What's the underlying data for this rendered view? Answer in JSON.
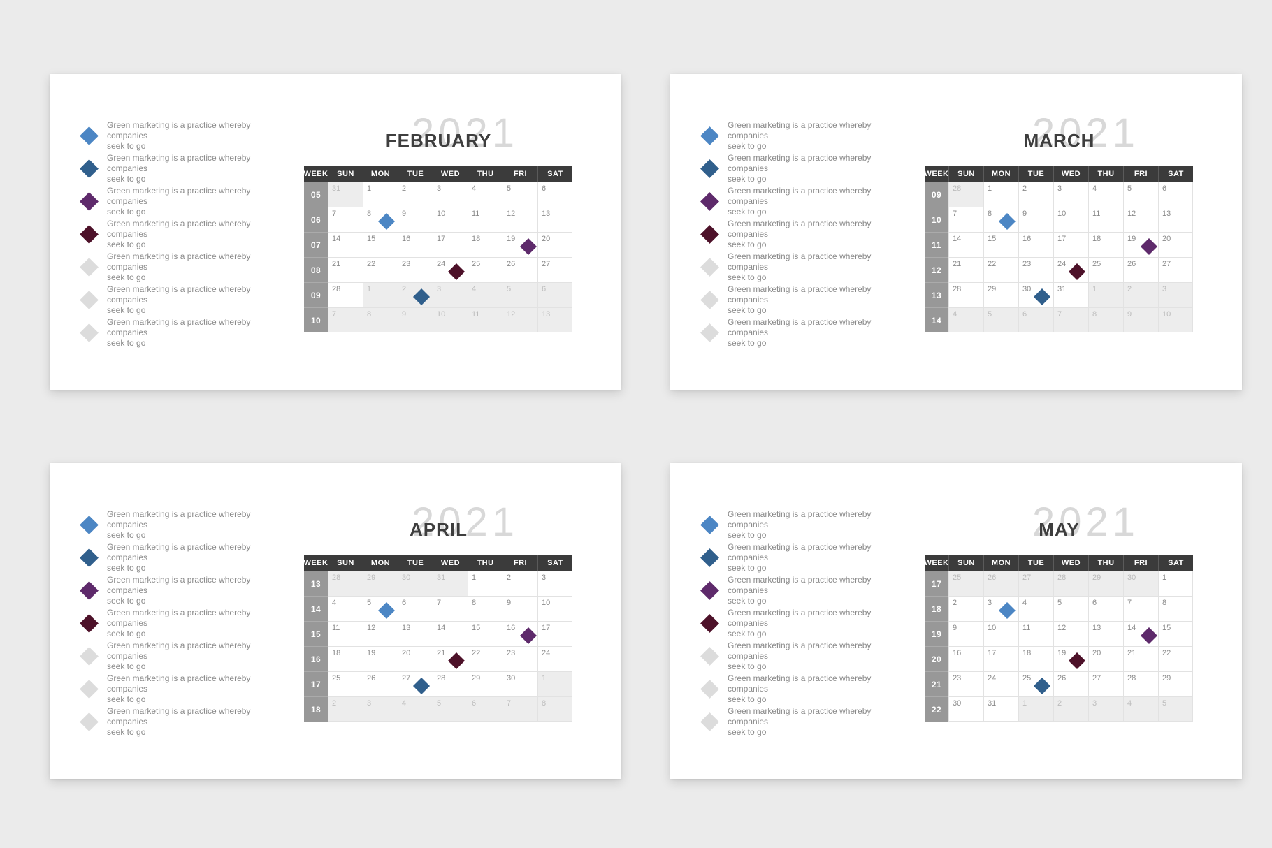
{
  "colors": {
    "blue": "#4c86c4",
    "darkblue": "#305f8c",
    "purple": "#5e2a6b",
    "maroon": "#4d1129",
    "gray": "#dcdcdc"
  },
  "legend": {
    "markers": [
      "blue",
      "darkblue",
      "purple",
      "maroon",
      "gray",
      "gray",
      "gray"
    ],
    "text_lines": [
      "Green marketing is a practice whereby companies",
      "seek to go"
    ]
  },
  "weekday_headers": [
    "WEEK",
    "SUN",
    "MON",
    "TUE",
    "WED",
    "THU",
    "FRI",
    "SAT"
  ],
  "calendars": [
    {
      "month": "FEBRUARY",
      "year": "2021",
      "weeks": [
        {
          "num": "05",
          "days": [
            {
              "d": "31",
              "muted": true
            },
            {
              "d": "1"
            },
            {
              "d": "2"
            },
            {
              "d": "3"
            },
            {
              "d": "4"
            },
            {
              "d": "5"
            },
            {
              "d": "6"
            }
          ]
        },
        {
          "num": "06",
          "days": [
            {
              "d": "7"
            },
            {
              "d": "8",
              "marker": "blue"
            },
            {
              "d": "9"
            },
            {
              "d": "10"
            },
            {
              "d": "11"
            },
            {
              "d": "12"
            },
            {
              "d": "13"
            }
          ]
        },
        {
          "num": "07",
          "days": [
            {
              "d": "14"
            },
            {
              "d": "15"
            },
            {
              "d": "16"
            },
            {
              "d": "17"
            },
            {
              "d": "18"
            },
            {
              "d": "19",
              "marker": "purple"
            },
            {
              "d": "20"
            }
          ]
        },
        {
          "num": "08",
          "days": [
            {
              "d": "21"
            },
            {
              "d": "22"
            },
            {
              "d": "23"
            },
            {
              "d": "24",
              "marker": "maroon"
            },
            {
              "d": "25"
            },
            {
              "d": "26"
            },
            {
              "d": "27"
            }
          ]
        },
        {
          "num": "09",
          "days": [
            {
              "d": "28"
            },
            {
              "d": "1",
              "muted": true
            },
            {
              "d": "2",
              "muted": true,
              "marker": "darkblue"
            },
            {
              "d": "3",
              "muted": true
            },
            {
              "d": "4",
              "muted": true
            },
            {
              "d": "5",
              "muted": true
            },
            {
              "d": "6",
              "muted": true
            }
          ]
        },
        {
          "num": "10",
          "days": [
            {
              "d": "7",
              "muted": true
            },
            {
              "d": "8",
              "muted": true
            },
            {
              "d": "9",
              "muted": true
            },
            {
              "d": "10",
              "muted": true
            },
            {
              "d": "11",
              "muted": true
            },
            {
              "d": "12",
              "muted": true
            },
            {
              "d": "13",
              "muted": true
            }
          ]
        }
      ]
    },
    {
      "month": "MARCH",
      "year": "2021",
      "weeks": [
        {
          "num": "09",
          "days": [
            {
              "d": "28",
              "muted": true
            },
            {
              "d": "1"
            },
            {
              "d": "2"
            },
            {
              "d": "3"
            },
            {
              "d": "4"
            },
            {
              "d": "5"
            },
            {
              "d": "6"
            }
          ]
        },
        {
          "num": "10",
          "days": [
            {
              "d": "7"
            },
            {
              "d": "8",
              "marker": "blue"
            },
            {
              "d": "9"
            },
            {
              "d": "10"
            },
            {
              "d": "11"
            },
            {
              "d": "12"
            },
            {
              "d": "13"
            }
          ]
        },
        {
          "num": "11",
          "days": [
            {
              "d": "14"
            },
            {
              "d": "15"
            },
            {
              "d": "16"
            },
            {
              "d": "17"
            },
            {
              "d": "18"
            },
            {
              "d": "19",
              "marker": "purple"
            },
            {
              "d": "20"
            }
          ]
        },
        {
          "num": "12",
          "days": [
            {
              "d": "21"
            },
            {
              "d": "22"
            },
            {
              "d": "23"
            },
            {
              "d": "24",
              "marker": "maroon"
            },
            {
              "d": "25"
            },
            {
              "d": "26"
            },
            {
              "d": "27"
            }
          ]
        },
        {
          "num": "13",
          "days": [
            {
              "d": "28"
            },
            {
              "d": "29"
            },
            {
              "d": "30",
              "marker": "darkblue"
            },
            {
              "d": "31"
            },
            {
              "d": "1",
              "muted": true
            },
            {
              "d": "2",
              "muted": true
            },
            {
              "d": "3",
              "muted": true
            }
          ]
        },
        {
          "num": "14",
          "days": [
            {
              "d": "4",
              "muted": true
            },
            {
              "d": "5",
              "muted": true
            },
            {
              "d": "6",
              "muted": true
            },
            {
              "d": "7",
              "muted": true
            },
            {
              "d": "8",
              "muted": true
            },
            {
              "d": "9",
              "muted": true
            },
            {
              "d": "10",
              "muted": true
            }
          ]
        }
      ]
    },
    {
      "month": "APRIL",
      "year": "2021",
      "weeks": [
        {
          "num": "13",
          "days": [
            {
              "d": "28",
              "muted": true
            },
            {
              "d": "29",
              "muted": true
            },
            {
              "d": "30",
              "muted": true
            },
            {
              "d": "31",
              "muted": true
            },
            {
              "d": "1"
            },
            {
              "d": "2"
            },
            {
              "d": "3"
            }
          ]
        },
        {
          "num": "14",
          "days": [
            {
              "d": "4"
            },
            {
              "d": "5",
              "marker": "blue"
            },
            {
              "d": "6"
            },
            {
              "d": "7"
            },
            {
              "d": "8"
            },
            {
              "d": "9"
            },
            {
              "d": "10"
            }
          ]
        },
        {
          "num": "15",
          "days": [
            {
              "d": "11"
            },
            {
              "d": "12"
            },
            {
              "d": "13"
            },
            {
              "d": "14"
            },
            {
              "d": "15"
            },
            {
              "d": "16",
              "marker": "purple"
            },
            {
              "d": "17"
            }
          ]
        },
        {
          "num": "16",
          "days": [
            {
              "d": "18"
            },
            {
              "d": "19"
            },
            {
              "d": "20"
            },
            {
              "d": "21",
              "marker": "maroon"
            },
            {
              "d": "22"
            },
            {
              "d": "23"
            },
            {
              "d": "24"
            }
          ]
        },
        {
          "num": "17",
          "days": [
            {
              "d": "25"
            },
            {
              "d": "26"
            },
            {
              "d": "27",
              "marker": "darkblue"
            },
            {
              "d": "28"
            },
            {
              "d": "29"
            },
            {
              "d": "30"
            },
            {
              "d": "1",
              "muted": true
            }
          ]
        },
        {
          "num": "18",
          "days": [
            {
              "d": "2",
              "muted": true
            },
            {
              "d": "3",
              "muted": true
            },
            {
              "d": "4",
              "muted": true
            },
            {
              "d": "5",
              "muted": true
            },
            {
              "d": "6",
              "muted": true
            },
            {
              "d": "7",
              "muted": true
            },
            {
              "d": "8",
              "muted": true
            }
          ]
        }
      ]
    },
    {
      "month": "MAY",
      "year": "2021",
      "weeks": [
        {
          "num": "17",
          "days": [
            {
              "d": "25",
              "muted": true
            },
            {
              "d": "26",
              "muted": true
            },
            {
              "d": "27",
              "muted": true
            },
            {
              "d": "28",
              "muted": true
            },
            {
              "d": "29",
              "muted": true
            },
            {
              "d": "30",
              "muted": true
            },
            {
              "d": "1"
            }
          ]
        },
        {
          "num": "18",
          "days": [
            {
              "d": "2"
            },
            {
              "d": "3",
              "marker": "blue"
            },
            {
              "d": "4"
            },
            {
              "d": "5"
            },
            {
              "d": "6"
            },
            {
              "d": "7"
            },
            {
              "d": "8"
            }
          ]
        },
        {
          "num": "19",
          "days": [
            {
              "d": "9"
            },
            {
              "d": "10"
            },
            {
              "d": "11"
            },
            {
              "d": "12"
            },
            {
              "d": "13"
            },
            {
              "d": "14",
              "marker": "purple"
            },
            {
              "d": "15"
            }
          ]
        },
        {
          "num": "20",
          "days": [
            {
              "d": "16"
            },
            {
              "d": "17"
            },
            {
              "d": "18"
            },
            {
              "d": "19",
              "marker": "maroon"
            },
            {
              "d": "20"
            },
            {
              "d": "21"
            },
            {
              "d": "22"
            }
          ]
        },
        {
          "num": "21",
          "days": [
            {
              "d": "23"
            },
            {
              "d": "24"
            },
            {
              "d": "25",
              "marker": "darkblue"
            },
            {
              "d": "26"
            },
            {
              "d": "27"
            },
            {
              "d": "28"
            },
            {
              "d": "29"
            }
          ]
        },
        {
          "num": "22",
          "days": [
            {
              "d": "30"
            },
            {
              "d": "31"
            },
            {
              "d": "1",
              "muted": true
            },
            {
              "d": "2",
              "muted": true
            },
            {
              "d": "3",
              "muted": true
            },
            {
              "d": "4",
              "muted": true
            },
            {
              "d": "5",
              "muted": true
            }
          ]
        }
      ]
    }
  ]
}
